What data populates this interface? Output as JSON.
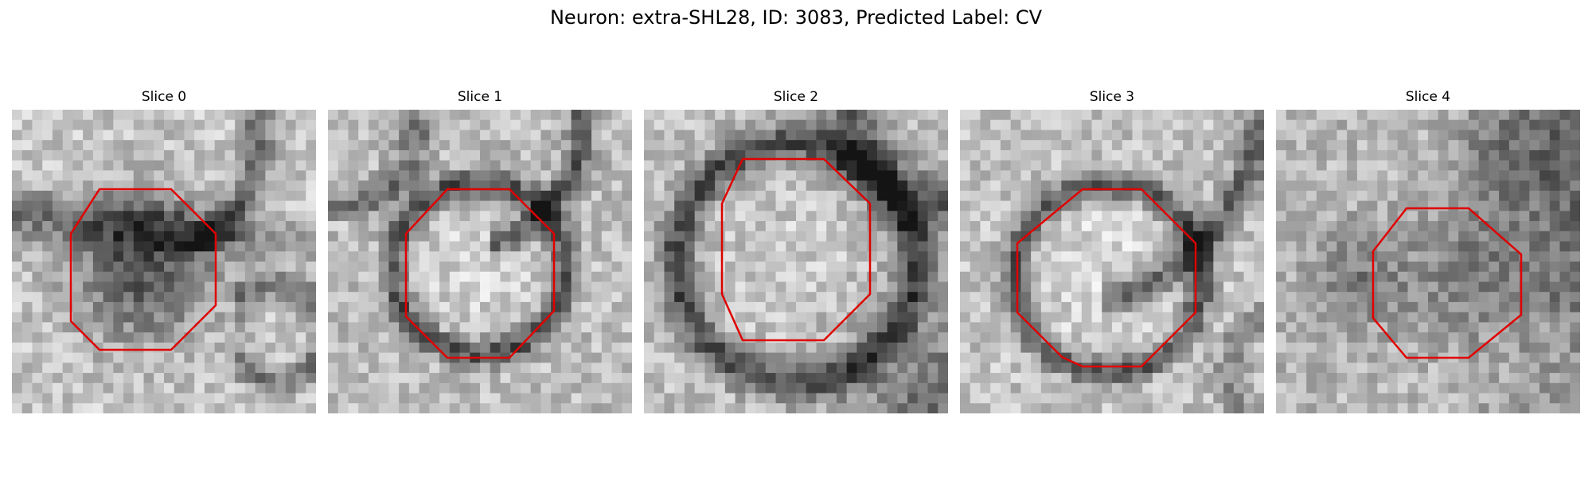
{
  "figure": {
    "title": "Neuron: extra-SHL28, ID: 3083, Predicted Label: CV"
  },
  "panels": [
    {
      "title": "Slice 0",
      "variant": 0
    },
    {
      "title": "Slice 1",
      "variant": 1
    },
    {
      "title": "Slice 2",
      "variant": 2
    },
    {
      "title": "Slice 3",
      "variant": 3
    },
    {
      "title": "Slice 4",
      "variant": 4
    }
  ],
  "colors": {
    "contour": "#e00000",
    "background": "#ffffff"
  }
}
